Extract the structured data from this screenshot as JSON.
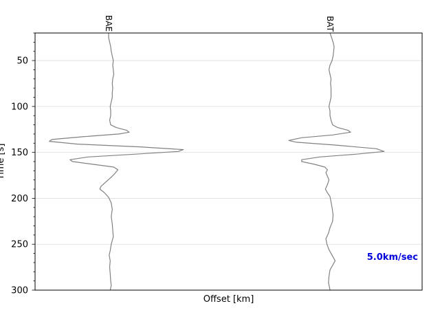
{
  "chart_data": {
    "type": "line",
    "xlabel": "Offset [km]",
    "ylabel": "Time [s]",
    "ylim": [
      20,
      300
    ],
    "y_inverted": true,
    "yticks": [
      50,
      100,
      150,
      200,
      250,
      300
    ],
    "yminor_step": 10,
    "grid": "horizontal",
    "annotation": {
      "text": "5.0km/sec",
      "color": "#0000dd"
    },
    "trace_color": "#808080",
    "series": [
      {
        "name": "BAE",
        "points": [
          [
            20,
            0.0
          ],
          [
            25,
            0.0
          ],
          [
            30,
            0.02
          ],
          [
            35,
            0.04
          ],
          [
            40,
            0.05
          ],
          [
            45,
            0.07
          ],
          [
            50,
            0.09
          ],
          [
            55,
            0.08
          ],
          [
            60,
            0.09
          ],
          [
            65,
            0.1
          ],
          [
            70,
            0.08
          ],
          [
            75,
            0.07
          ],
          [
            80,
            0.08
          ],
          [
            85,
            0.07
          ],
          [
            90,
            0.07
          ],
          [
            95,
            0.05
          ],
          [
            100,
            0.03
          ],
          [
            105,
            0.04
          ],
          [
            110,
            0.04
          ],
          [
            115,
            0.02
          ],
          [
            120,
            0.04
          ],
          [
            123,
            0.15
          ],
          [
            126,
            0.35
          ],
          [
            128,
            0.4
          ],
          [
            130,
            0.2
          ],
          [
            133,
            -0.5
          ],
          [
            136,
            -1.1
          ],
          [
            138,
            -1.15
          ],
          [
            141,
            -0.6
          ],
          [
            144,
            0.6
          ],
          [
            147,
            1.45
          ],
          [
            149,
            1.35
          ],
          [
            152,
            0.5
          ],
          [
            155,
            -0.4
          ],
          [
            158,
            -0.75
          ],
          [
            160,
            -0.7
          ],
          [
            163,
            -0.3
          ],
          [
            166,
            0.1
          ],
          [
            169,
            0.18
          ],
          [
            173,
            0.12
          ],
          [
            177,
            0.05
          ],
          [
            182,
            -0.05
          ],
          [
            187,
            -0.15
          ],
          [
            190,
            -0.17
          ],
          [
            194,
            -0.08
          ],
          [
            199,
            0.0
          ],
          [
            205,
            0.05
          ],
          [
            212,
            0.07
          ],
          [
            220,
            0.05
          ],
          [
            228,
            0.07
          ],
          [
            235,
            0.08
          ],
          [
            242,
            0.09
          ],
          [
            250,
            0.05
          ],
          [
            257,
            0.03
          ],
          [
            262,
            0.01
          ],
          [
            268,
            0.03
          ],
          [
            275,
            0.02
          ],
          [
            282,
            0.03
          ],
          [
            290,
            0.04
          ],
          [
            295,
            0.05
          ],
          [
            300,
            0.03
          ]
        ]
      },
      {
        "name": "BAT",
        "points": [
          [
            20,
            0.0
          ],
          [
            25,
            0.03
          ],
          [
            30,
            0.06
          ],
          [
            35,
            0.08
          ],
          [
            40,
            0.07
          ],
          [
            45,
            0.06
          ],
          [
            50,
            0.04
          ],
          [
            55,
            0.0
          ],
          [
            60,
            -0.02
          ],
          [
            65,
            0.0
          ],
          [
            70,
            0.02
          ],
          [
            75,
            0.01
          ],
          [
            80,
            0.02
          ],
          [
            85,
            0.02
          ],
          [
            90,
            0.02
          ],
          [
            95,
            0.0
          ],
          [
            100,
            -0.02
          ],
          [
            105,
            0.0
          ],
          [
            110,
            0.0
          ],
          [
            115,
            0.02
          ],
          [
            120,
            0.05
          ],
          [
            123,
            0.15
          ],
          [
            126,
            0.35
          ],
          [
            128,
            0.4
          ],
          [
            131,
            0.05
          ],
          [
            134,
            -0.55
          ],
          [
            137,
            -0.8
          ],
          [
            139,
            -0.65
          ],
          [
            142,
            0.1
          ],
          [
            146,
            0.9
          ],
          [
            149,
            1.05
          ],
          [
            152,
            0.5
          ],
          [
            155,
            -0.2
          ],
          [
            158,
            -0.55
          ],
          [
            160,
            -0.55
          ],
          [
            163,
            -0.3
          ],
          [
            166,
            -0.1
          ],
          [
            169,
            -0.05
          ],
          [
            172,
            -0.08
          ],
          [
            176,
            -0.05
          ],
          [
            180,
            -0.02
          ],
          [
            185,
            -0.05
          ],
          [
            190,
            -0.09
          ],
          [
            194,
            -0.05
          ],
          [
            198,
            0.0
          ],
          [
            204,
            0.02
          ],
          [
            210,
            0.04
          ],
          [
            218,
            0.06
          ],
          [
            225,
            0.05
          ],
          [
            232,
            0.0
          ],
          [
            238,
            -0.03
          ],
          [
            244,
            -0.08
          ],
          [
            250,
            -0.06
          ],
          [
            256,
            -0.02
          ],
          [
            262,
            0.04
          ],
          [
            268,
            0.1
          ],
          [
            273,
            0.05
          ],
          [
            278,
            0.0
          ],
          [
            285,
            -0.02
          ],
          [
            292,
            -0.03
          ],
          [
            297,
            -0.01
          ],
          [
            300,
            0.0
          ]
        ]
      }
    ]
  }
}
